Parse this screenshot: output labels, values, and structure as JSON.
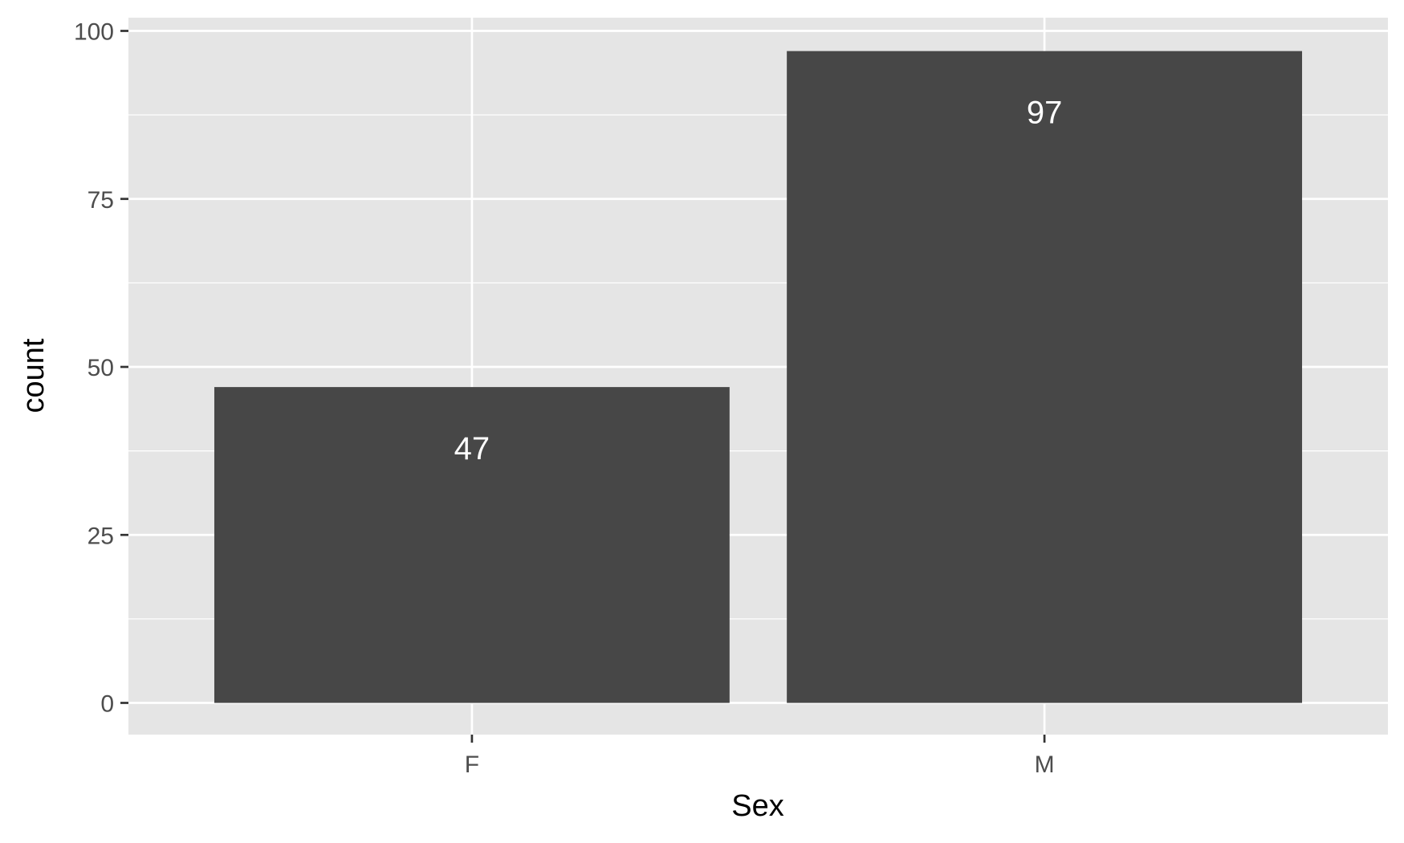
{
  "chart_data": {
    "type": "bar",
    "categories": [
      "F",
      "M"
    ],
    "values": [
      47,
      97
    ],
    "data_labels": [
      "47",
      "97"
    ],
    "xlabel": "Sex",
    "ylabel": "count",
    "ylim": [
      0,
      100
    ],
    "yticks": [
      0,
      25,
      50,
      75,
      100
    ],
    "grid": true,
    "legend": "none",
    "colors": {
      "bar": "#474747",
      "panel": "#e5e5e5",
      "grid": "#ffffff",
      "tick_text": "#4d4d4d",
      "tick_mark": "#333333",
      "label_text": "#ffffff"
    }
  }
}
